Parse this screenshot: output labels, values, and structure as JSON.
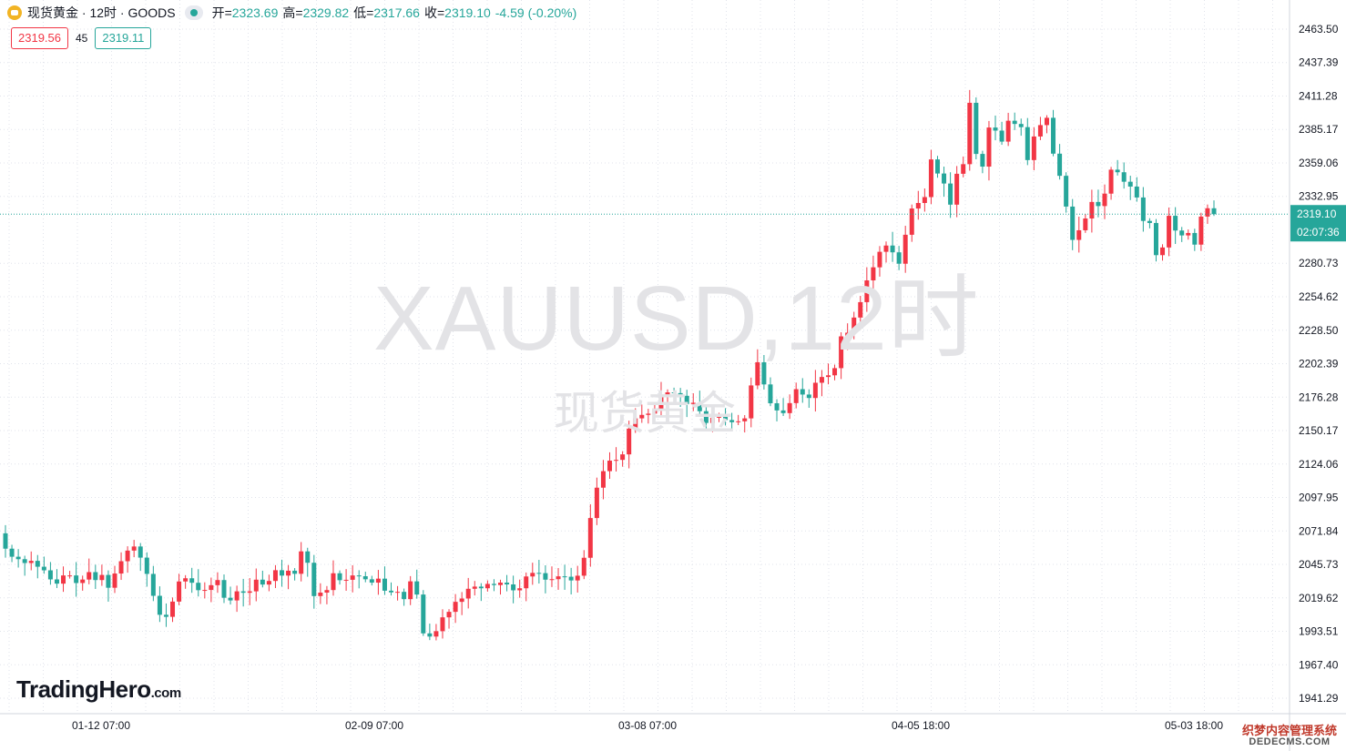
{
  "header": {
    "symbol_title": "现货黄金 · 12时 · GOODS",
    "open_label": "开=",
    "open_value": "2323.69",
    "high_label": "高=",
    "high_value": "2329.82",
    "low_label": "低=",
    "low_value": "2317.66",
    "close_label": "收=",
    "close_value": "2319.10",
    "change_value": "-4.59 (-0.20%)"
  },
  "trade": {
    "sell_price": "2319.56",
    "spread": "45",
    "buy_price": "2319.11"
  },
  "watermark": {
    "line1": "XAUUSD,12时",
    "line2": "现货黄金"
  },
  "logo": {
    "main": "TradingHero",
    "suffix": ".com"
  },
  "site_watermark": {
    "line1": "织梦内容管理系统",
    "line2": "DEDECMS.COM"
  },
  "colors": {
    "up": "#f23645",
    "down": "#26a69a",
    "grid": "#e0e3eb",
    "axis_text": "#131722",
    "last_price_bg": "#26a69a"
  },
  "chart_data": {
    "type": "candlestick",
    "y_axis_ticks": [
      "2463.50",
      "2437.39",
      "2411.28",
      "2385.17",
      "2359.06",
      "2332.95",
      "2280.73",
      "2254.62",
      "2228.50",
      "2202.39",
      "2176.28",
      "2150.17",
      "2124.06",
      "2097.95",
      "2071.84",
      "2045.73",
      "2019.62",
      "1993.51",
      "1967.40",
      "1941.29"
    ],
    "ylim": [
      1930,
      2473
    ],
    "x_axis_ticks": [
      "01-12 07:00",
      "02-09 07:00",
      "03-08 07:00",
      "04-05 18:00",
      "05-03 18:00"
    ],
    "last_price": "2319.10",
    "countdown": "02:07:36",
    "close_series": [
      2058.0,
      2051.7,
      2049.8,
      2046.8,
      2048.5,
      2043.9,
      2041.1,
      2034.0,
      2030.7,
      2037.1,
      2037.1,
      2031.2,
      2033.9,
      2039.7,
      2033.5,
      2037.5,
      2027.5,
      2038.6,
      2048.2,
      2056.5,
      2059.7,
      2051.0,
      2038.3,
      2021.2,
      2006.4,
      2004.8,
      2016.7,
      2032.4,
      2034.9,
      2031.4,
      2025.6,
      2025.8,
      2029.5,
      2033.5,
      2019.7,
      2017.6,
      2024.7,
      2023.6,
      2024.7,
      2033.8,
      2030.0,
      2032.8,
      2041.2,
      2037.0,
      2040.8,
      2038.4,
      2055.9,
      2047.0,
      2021.0,
      2023.7,
      2025.7,
      2038.8,
      2033.4,
      2033.7,
      2037.1,
      2036.5,
      2034.1,
      2031.5,
      2034.6,
      2025.2,
      2023.9,
      2024.3,
      2018.6,
      2032.5,
      2022.2,
      1991.9,
      1989.4,
      1993.6,
      2004.4,
      2008.7,
      2016.5,
      2019.1,
      2026.7,
      2028.4,
      2027.1,
      2030.5,
      2029.6,
      2031.5,
      2030.1,
      2025.5,
      2027.1,
      2036.3,
      2039.1,
      2038.9,
      2033.8,
      2034.2,
      2036.4,
      2036.1,
      2033.2,
      2036.9,
      2050.9,
      2081.9,
      2105.6,
      2118.5,
      2126.7,
      2127.3,
      2131.6,
      2151.7,
      2159.7,
      2162.4,
      2163.4,
      2167.3,
      2177.5,
      2180.0,
      2179.4,
      2177.3,
      2170.9,
      2171.9,
      2165.3,
      2156.1,
      2160.2,
      2161.3,
      2158.4,
      2156.7,
      2157.4,
      2159.7,
      2185.4,
      2203.5,
      2186.2,
      2171.5,
      2165.9,
      2163.8,
      2171.6,
      2182.5,
      2178.3,
      2175.6,
      2187.5,
      2192.0,
      2193.3,
      2198.9,
      2223.7,
      2226.6,
      2238.4,
      2250.4,
      2267.4,
      2277.6,
      2289.7,
      2294.6,
      2289.3,
      2280.4,
      2303.0,
      2323.5,
      2327.8,
      2332.4,
      2361.8,
      2350.8,
      2343.0,
      2326.5,
      2350.6,
      2358.1,
      2406.0,
      2366.1,
      2356.2,
      2386.7,
      2384.3,
      2375.7,
      2392.0,
      2389.5,
      2387.0,
      2361.3,
      2379.7,
      2388.6,
      2394.3,
      2366.3,
      2349.0,
      2325.0,
      2299.0,
      2306.5,
      2315.7,
      2328.6,
      2325.4,
      2335.1,
      2353.8,
      2351.8,
      2344.4,
      2340.6,
      2332.1,
      2313.8,
      2312.2,
      2287.1,
      2293.1,
      2317.8,
      2306.3,
      2302.5,
      2304.4,
      2295.3,
      2317.2,
      2323.7,
      2319.1
    ]
  }
}
